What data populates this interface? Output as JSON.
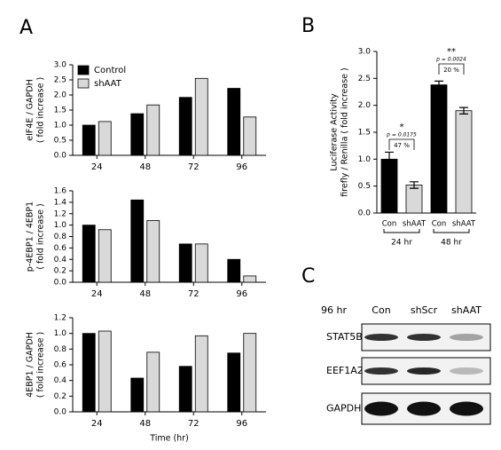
{
  "panel_labels": [
    "A",
    "B",
    "C"
  ],
  "chart_data": [
    {
      "type": "bar",
      "ylabel": [
        "eIF4E / GAPDH",
        "( fold increase )"
      ],
      "categories": [
        "24",
        "48",
        "72",
        "96"
      ],
      "series": [
        {
          "name": "Control",
          "color": "#000000",
          "values": [
            1.0,
            1.38,
            1.92,
            2.22
          ]
        },
        {
          "name": "shAAT",
          "color": "#d9d9d9",
          "values": [
            1.12,
            1.67,
            2.55,
            1.27
          ]
        }
      ],
      "ylim": [
        0,
        3
      ],
      "yticks": [
        {
          "value": 0,
          "label": "0.0"
        },
        {
          "value": 0.5,
          "label": "0.5"
        },
        {
          "value": 1,
          "label": "1.0"
        },
        {
          "value": 1.5,
          "label": "1.5"
        },
        {
          "value": 2,
          "label": "2.0"
        },
        {
          "value": 2.5,
          "label": "2.5"
        },
        {
          "value": 3,
          "label": "3.0"
        }
      ],
      "legend": "top-left"
    },
    {
      "type": "bar",
      "ylabel": [
        "p-4EBP1 / 4EBP1",
        "( fold increase )"
      ],
      "categories": [
        "24",
        "48",
        "72",
        "96"
      ],
      "series": [
        {
          "color": "#000000",
          "values": [
            1.0,
            1.44,
            0.67,
            0.4
          ]
        },
        {
          "color": "#d9d9d9",
          "values": [
            0.92,
            1.08,
            0.67,
            0.11
          ]
        }
      ],
      "ylim": [
        0,
        1.6
      ],
      "yticks": [
        {
          "value": 0,
          "label": "0.0"
        },
        {
          "value": 0.2,
          "label": "0.2"
        },
        {
          "value": 0.4,
          "label": "0.4"
        },
        {
          "value": 0.6,
          "label": "0.6"
        },
        {
          "value": 0.8,
          "label": "0.8"
        },
        {
          "value": 1,
          "label": "1.0"
        },
        {
          "value": 1.2,
          "label": "1.2"
        },
        {
          "value": 1.4,
          "label": "1.4"
        },
        {
          "value": 1.6,
          "label": "1.6"
        }
      ]
    },
    {
      "type": "bar",
      "ylabel": [
        "4EBP1 / GAPDH",
        "( fold increase )"
      ],
      "xlabel": "Time (hr)",
      "categories": [
        "24",
        "48",
        "72",
        "96"
      ],
      "series": [
        {
          "color": "#000000",
          "values": [
            1.0,
            0.43,
            0.58,
            0.75
          ]
        },
        {
          "color": "#d9d9d9",
          "values": [
            1.03,
            0.76,
            0.97,
            1.0
          ]
        }
      ],
      "ylim": [
        0,
        1.2
      ],
      "yticks": [
        {
          "value": 0,
          "label": "0.0"
        },
        {
          "value": 0.2,
          "label": "0.2"
        },
        {
          "value": 0.4,
          "label": "0.4"
        },
        {
          "value": 0.6,
          "label": "0.6"
        },
        {
          "value": 0.8,
          "label": "0.8"
        },
        {
          "value": 1,
          "label": "1.0"
        },
        {
          "value": 1.2,
          "label": "1.2"
        }
      ]
    },
    {
      "type": "errorbar",
      "ylabel": [
        "Luciferase Activity",
        "firefly / Renilla ( fold increase )"
      ],
      "categories": [
        "Con",
        "shAAT",
        "Con",
        "shAAT"
      ],
      "groups": [
        "24 hr",
        "48 hr"
      ],
      "values": [
        1.0,
        0.52,
        2.38,
        1.9
      ],
      "errors": [
        0.13,
        0.06,
        0.07,
        0.06
      ],
      "colors": [
        "#000000",
        "#d9d9d9",
        "#000000",
        "#d9d9d9"
      ],
      "ylim": [
        0,
        3
      ],
      "yticks": [
        {
          "value": 0,
          "label": "0.0"
        },
        {
          "value": 0.5,
          "label": "0.5"
        },
        {
          "value": 1,
          "label": "1.0"
        },
        {
          "value": 1.5,
          "label": "1.5"
        },
        {
          "value": 2,
          "label": "2.0"
        },
        {
          "value": 2.5,
          "label": "2.5"
        },
        {
          "value": 3,
          "label": "3.0"
        }
      ],
      "annotations": [
        {
          "stars": "*",
          "p": "p = 0.0175",
          "change": "47 %"
        },
        {
          "stars": "**",
          "p": "p = 0.0024",
          "change": "20 %"
        }
      ]
    }
  ],
  "blot": {
    "condition": "96 hr",
    "columns": [
      "Con",
      "shScr",
      "shAAT"
    ],
    "rows": [
      "STAT5B",
      "EEF1A2",
      "GAPDH"
    ]
  }
}
